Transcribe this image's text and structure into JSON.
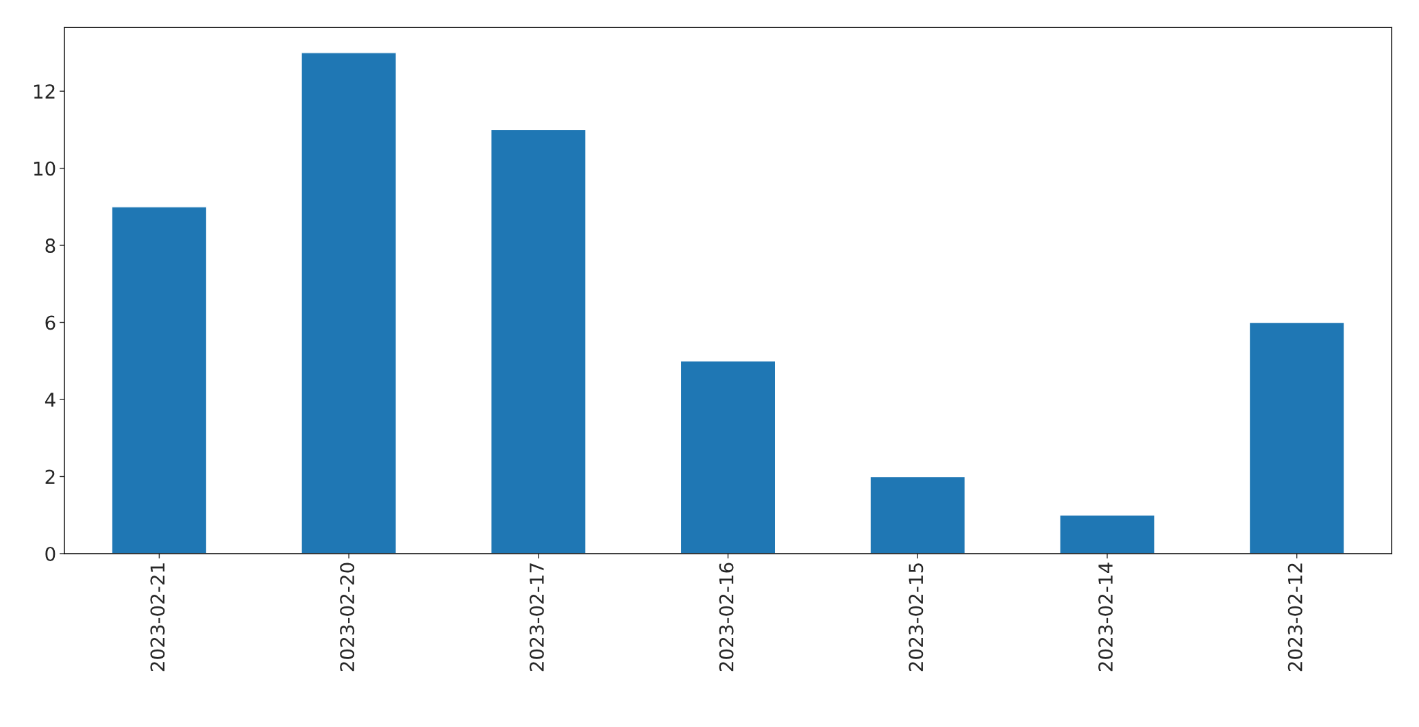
{
  "chart_data": {
    "type": "bar",
    "categories": [
      "2023-02-21",
      "2023-02-20",
      "2023-02-17",
      "2023-02-16",
      "2023-02-15",
      "2023-02-14",
      "2023-02-12"
    ],
    "values": [
      9,
      13,
      11,
      5,
      2,
      1,
      6
    ],
    "color": "#1f77b4",
    "ylim": [
      0,
      13.65
    ],
    "yticks": [
      0,
      2,
      4,
      6,
      8,
      10,
      12
    ],
    "grid": false,
    "legend": false
  }
}
